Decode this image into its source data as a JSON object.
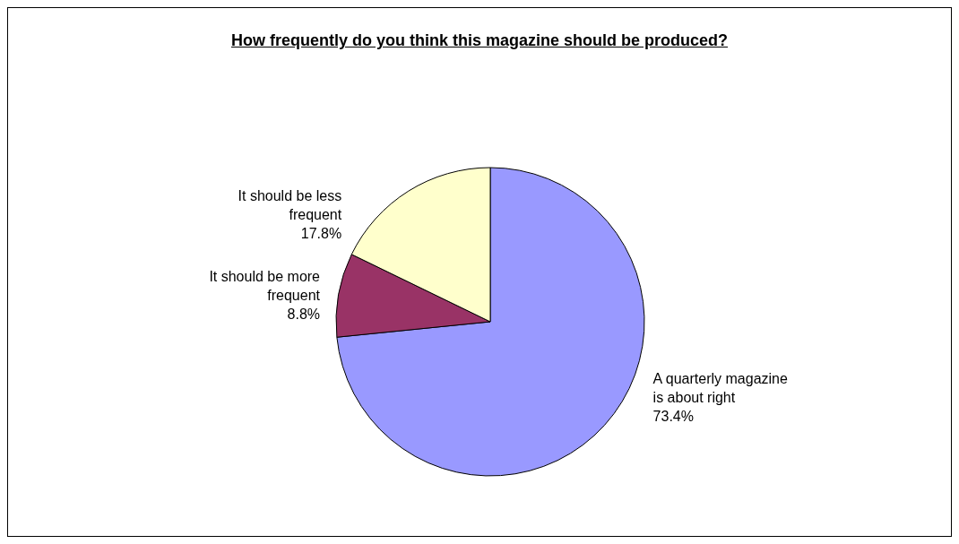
{
  "chart_data": {
    "type": "pie",
    "title": "How frequently do you think this magazine should be produced?",
    "categories": [
      "A quarterly magazine is about right",
      "It should be more frequent",
      "It should be less frequent"
    ],
    "values": [
      73.4,
      8.8,
      17.8
    ],
    "value_labels": [
      "73.4%",
      "8.8%",
      "17.8%"
    ],
    "colors": [
      "#9999ff",
      "#993366",
      "#ffffcc"
    ]
  }
}
